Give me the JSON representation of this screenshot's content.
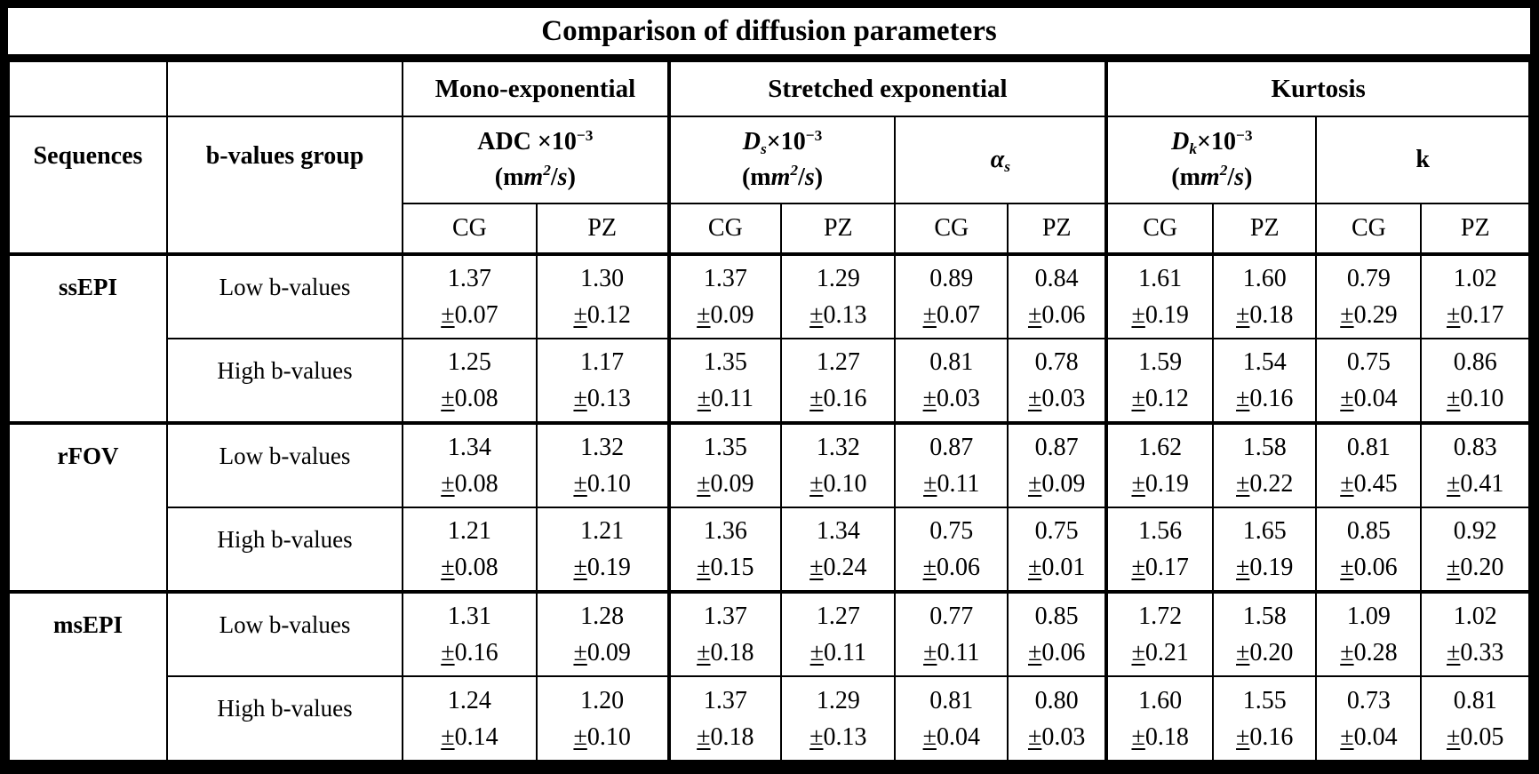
{
  "title": "Comparison of diffusion parameters",
  "plus_minus": "±",
  "header": {
    "sequences_label": "Sequences",
    "b_values_label": "b-values group",
    "cg_label": "CG",
    "pz_label": "PZ",
    "groups": [
      {
        "label": "Mono-exponential"
      },
      {
        "label": "Stretched exponential"
      },
      {
        "label": "Kurtosis"
      }
    ],
    "params": [
      {
        "name": "ADC x10^-3 (mm2/s)",
        "segments": [
          {
            "t": "ADC ×10"
          },
          {
            "t": "−3",
            "sup": true
          },
          {
            "br": true
          },
          {
            "t": "(m"
          },
          {
            "t": "m",
            "i": true
          },
          {
            "t": "2",
            "sup": true,
            "i": true
          },
          {
            "t": "/"
          },
          {
            "t": "s",
            "i": true
          },
          {
            "t": ")"
          }
        ]
      },
      {
        "name": "Ds x10^-3 (mm2/s)",
        "segments": [
          {
            "t": "D",
            "i": true
          },
          {
            "t": "s",
            "sub": true,
            "i": true
          },
          {
            "t": "×10"
          },
          {
            "t": "−3",
            "sup": true
          },
          {
            "br": true
          },
          {
            "t": "(m"
          },
          {
            "t": "m",
            "i": true
          },
          {
            "t": "2",
            "sup": true,
            "i": true
          },
          {
            "t": "/"
          },
          {
            "t": "s",
            "i": true
          },
          {
            "t": ")"
          }
        ]
      },
      {
        "name": "alpha_s",
        "segments": [
          {
            "t": "α",
            "i": true
          },
          {
            "t": "s",
            "sub": true,
            "i": true
          }
        ]
      },
      {
        "name": "Dk x10^-3 (mm2/s)",
        "segments": [
          {
            "t": "D",
            "i": true
          },
          {
            "t": "k",
            "sub": true,
            "i": true
          },
          {
            "t": "×10"
          },
          {
            "t": "−3",
            "sup": true
          },
          {
            "br": true
          },
          {
            "t": "(m"
          },
          {
            "t": "m",
            "i": true
          },
          {
            "t": "2",
            "sup": true,
            "i": true
          },
          {
            "t": "/"
          },
          {
            "t": "s",
            "i": true
          },
          {
            "t": ")"
          }
        ]
      },
      {
        "name": "k",
        "segments": [
          {
            "t": "k"
          }
        ]
      }
    ]
  },
  "rows": [
    {
      "sequence": "ssEPI",
      "sub_rows": [
        {
          "b_group": "Low b-values",
          "cells": [
            {
              "v": "1.37",
              "sd": "0.07"
            },
            {
              "v": "1.30",
              "sd": "0.12"
            },
            {
              "v": "1.37",
              "sd": "0.09"
            },
            {
              "v": "1.29",
              "sd": "0.13"
            },
            {
              "v": "0.89",
              "sd": "0.07"
            },
            {
              "v": "0.84",
              "sd": "0.06"
            },
            {
              "v": "1.61",
              "sd": "0.19"
            },
            {
              "v": "1.60",
              "sd": "0.18"
            },
            {
              "v": "0.79",
              "sd": "0.29"
            },
            {
              "v": "1.02",
              "sd": "0.17"
            }
          ]
        },
        {
          "b_group": "High b-values",
          "cells": [
            {
              "v": "1.25",
              "sd": "0.08"
            },
            {
              "v": "1.17",
              "sd": "0.13"
            },
            {
              "v": "1.35",
              "sd": "0.11"
            },
            {
              "v": "1.27",
              "sd": "0.16"
            },
            {
              "v": "0.81",
              "sd": "0.03"
            },
            {
              "v": "0.78",
              "sd": "0.03"
            },
            {
              "v": "1.59",
              "sd": "0.12"
            },
            {
              "v": "1.54",
              "sd": "0.16"
            },
            {
              "v": "0.75",
              "sd": "0.04"
            },
            {
              "v": "0.86",
              "sd": "0.10"
            }
          ]
        }
      ]
    },
    {
      "sequence": "rFOV",
      "sub_rows": [
        {
          "b_group": "Low b-values",
          "cells": [
            {
              "v": "1.34",
              "sd": "0.08"
            },
            {
              "v": "1.32",
              "sd": "0.10"
            },
            {
              "v": "1.35",
              "sd": "0.09"
            },
            {
              "v": "1.32",
              "sd": "0.10"
            },
            {
              "v": "0.87",
              "sd": "0.11"
            },
            {
              "v": "0.87",
              "sd": "0.09"
            },
            {
              "v": "1.62",
              "sd": "0.19"
            },
            {
              "v": "1.58",
              "sd": "0.22"
            },
            {
              "v": "0.81",
              "sd": "0.45"
            },
            {
              "v": "0.83",
              "sd": "0.41"
            }
          ]
        },
        {
          "b_group": "High b-values",
          "cells": [
            {
              "v": "1.21",
              "sd": "0.08"
            },
            {
              "v": "1.21",
              "sd": "0.19"
            },
            {
              "v": "1.36",
              "sd": "0.15"
            },
            {
              "v": "1.34",
              "sd": "0.24"
            },
            {
              "v": "0.75",
              "sd": "0.06"
            },
            {
              "v": "0.75",
              "sd": "0.01"
            },
            {
              "v": "1.56",
              "sd": "0.17"
            },
            {
              "v": "1.65",
              "sd": "0.19"
            },
            {
              "v": "0.85",
              "sd": "0.06"
            },
            {
              "v": "0.92",
              "sd": "0.20"
            }
          ]
        }
      ]
    },
    {
      "sequence": "msEPI",
      "sub_rows": [
        {
          "b_group": "Low b-values",
          "cells": [
            {
              "v": "1.31",
              "sd": "0.16"
            },
            {
              "v": "1.28",
              "sd": "0.09"
            },
            {
              "v": "1.37",
              "sd": "0.18"
            },
            {
              "v": "1.27",
              "sd": "0.11"
            },
            {
              "v": "0.77",
              "sd": "0.11"
            },
            {
              "v": "0.85",
              "sd": "0.06"
            },
            {
              "v": "1.72",
              "sd": "0.21"
            },
            {
              "v": "1.58",
              "sd": "0.20"
            },
            {
              "v": "1.09",
              "sd": "0.28"
            },
            {
              "v": "1.02",
              "sd": "0.33"
            }
          ]
        },
        {
          "b_group": "High b-values",
          "cells": [
            {
              "v": "1.24",
              "sd": "0.14"
            },
            {
              "v": "1.20",
              "sd": "0.10"
            },
            {
              "v": "1.37",
              "sd": "0.18"
            },
            {
              "v": "1.29",
              "sd": "0.13"
            },
            {
              "v": "0.81",
              "sd": "0.04"
            },
            {
              "v": "0.80",
              "sd": "0.03"
            },
            {
              "v": "1.60",
              "sd": "0.18"
            },
            {
              "v": "1.55",
              "sd": "0.16"
            },
            {
              "v": "0.73",
              "sd": "0.04"
            },
            {
              "v": "0.81",
              "sd": "0.05"
            }
          ]
        }
      ]
    }
  ]
}
